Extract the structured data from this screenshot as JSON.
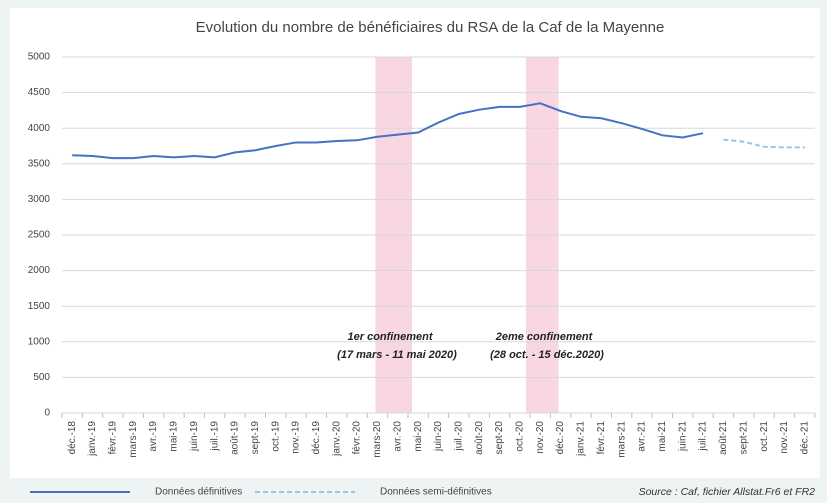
{
  "chart_data": {
    "type": "line",
    "title": "Evolution du nombre de bénéficiaires du RSA de la Caf de la Mayenne",
    "categories": [
      "déc.-18",
      "janv.-19",
      "févr.-19",
      "mars-19",
      "avr.-19",
      "mai-19",
      "juin-19",
      "juil.-19",
      "août-19",
      "sept-19",
      "oct.-19",
      "nov.-19",
      "déc.-19",
      "janv.-20",
      "févr.-20",
      "mars-20",
      "avr.-20",
      "mai-20",
      "juin-20",
      "juil.-20",
      "août-20",
      "sept-20",
      "oct.-20",
      "nov.-20",
      "déc.-20",
      "janv.-21",
      "févr.-21",
      "mars-21",
      "avr.-21",
      "mai-21",
      "juin-21",
      "juil.-21",
      "août-21",
      "sept-21",
      "oct.-21",
      "nov.-21",
      "déc.-21"
    ],
    "series": [
      {
        "name": "Données définitives",
        "color": "#4472c4",
        "dash": false,
        "values": [
          3620,
          3610,
          3580,
          3580,
          3610,
          3590,
          3610,
          3590,
          3660,
          3690,
          3750,
          3800,
          3800,
          3820,
          3830,
          3880,
          3910,
          3940,
          4080,
          4200,
          4260,
          4300,
          4300,
          4350,
          4240,
          4160,
          4140,
          4070,
          3990,
          3900,
          3870,
          3930,
          null,
          null,
          null,
          null,
          null
        ]
      },
      {
        "name": "Données semi-définitives",
        "color": "#9dc3e6",
        "dash": true,
        "values": [
          null,
          null,
          null,
          null,
          null,
          null,
          null,
          null,
          null,
          null,
          null,
          null,
          null,
          null,
          null,
          null,
          null,
          null,
          null,
          null,
          null,
          null,
          null,
          null,
          null,
          null,
          null,
          null,
          null,
          null,
          null,
          null,
          3840,
          3810,
          3740,
          3730,
          3730
        ]
      }
    ],
    "ylim": [
      0,
      5000
    ],
    "yticks": [
      0,
      500,
      1000,
      1500,
      2000,
      2500,
      3000,
      3500,
      4000,
      4500,
      5000
    ],
    "grid": true,
    "annotations": [
      {
        "line1": "1er confinement",
        "line2": "(17 mars - 11 mai 2020)"
      },
      {
        "line1": "2eme confinement",
        "line2": "(28 oct. - 15 déc.2020)"
      }
    ],
    "source": "Source : Caf, fichier Allstat.Fr6 et FR2"
  }
}
